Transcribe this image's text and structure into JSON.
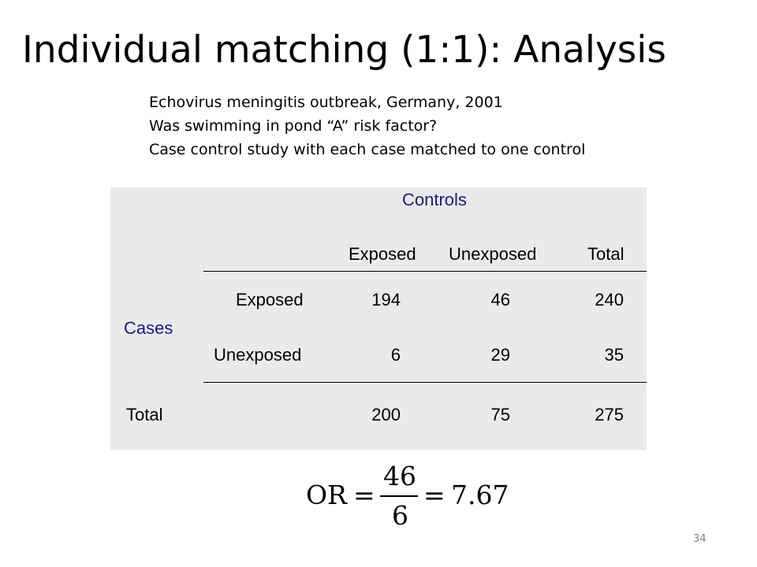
{
  "slide": {
    "title": "Individual matching (1:1): Analysis",
    "subtitle_lines": [
      "Echovirus meningitis outbreak, Germany, 2001",
      "Was swimming in pond “A” risk factor?",
      "Case control study with each case matched to one control"
    ],
    "page_number": "34"
  },
  "table": {
    "controls_header": "Controls",
    "cases_header": "Cases",
    "column_headers": [
      "Exposed",
      "Unexposed",
      "Total"
    ],
    "rows": [
      {
        "label": "Exposed",
        "values": [
          "194",
          "46",
          "240"
        ]
      },
      {
        "label": "Unexposed",
        "values": [
          "6",
          "29",
          "35"
        ]
      },
      {
        "label": "Total",
        "values": [
          "200",
          "75",
          "275"
        ]
      }
    ],
    "colors": {
      "header_blue": "#1a1a8c",
      "background": "#eaeaea"
    }
  },
  "formula": {
    "lhs": "OR",
    "equals": "=",
    "numerator": "46",
    "denominator": "6",
    "result": "7.67"
  }
}
